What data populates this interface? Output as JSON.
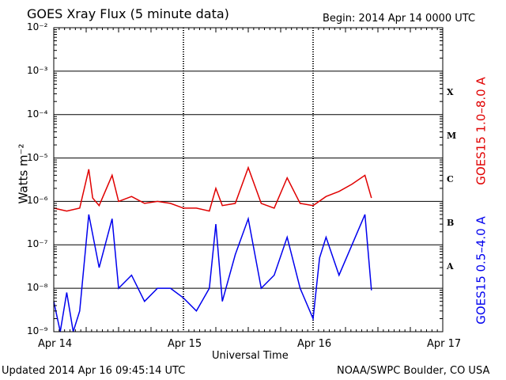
{
  "header": {
    "title": "GOES Xray Flux (5 minute data)",
    "begin": "Begin:  2014 Apr 14 0000 UTC"
  },
  "footer": {
    "updated": "Updated 2014 Apr 16 09:45:14 UTC",
    "credit": "NOAA/SWPC Boulder, CO USA"
  },
  "colors": {
    "long_channel": "#e00000",
    "short_channel": "#0000ee",
    "axes": "#000000"
  },
  "chart_data": {
    "type": "line",
    "title": "GOES Xray Flux (5 minute data)",
    "xlabel": "Universal Time",
    "ylabel": "Watts m⁻²",
    "yscale": "log",
    "ylim": [
      1e-09,
      0.01
    ],
    "grid": true,
    "y_ticks": [
      {
        "value": 1e-09,
        "label": "10⁻⁹"
      },
      {
        "value": 1e-08,
        "label": "10⁻⁸"
      },
      {
        "value": 1e-07,
        "label": "10⁻⁷"
      },
      {
        "value": 1e-06,
        "label": "10⁻⁶"
      },
      {
        "value": 1e-05,
        "label": "10⁻⁵"
      },
      {
        "value": 0.0001,
        "label": "10⁻⁴"
      },
      {
        "value": 0.001,
        "label": "10⁻³"
      },
      {
        "value": 0.01,
        "label": "10⁻²"
      }
    ],
    "x_ticks": [
      "Apr 14",
      "Apr 15",
      "Apr 16",
      "Apr 17"
    ],
    "xlim_days": [
      0,
      3
    ],
    "flare_classes": [
      {
        "label": "A",
        "value": 1e-08
      },
      {
        "label": "B",
        "value": 1e-07
      },
      {
        "label": "C",
        "value": 1e-06
      },
      {
        "label": "M",
        "value": 1e-05
      },
      {
        "label": "X",
        "value": 0.0001
      }
    ],
    "series": [
      {
        "name": "GOES15 1.0–8.0 A",
        "color": "#e00000",
        "x": [
          0,
          0.1,
          0.2,
          0.27,
          0.3,
          0.35,
          0.45,
          0.5,
          0.6,
          0.7,
          0.8,
          0.9,
          1.0,
          1.1,
          1.2,
          1.25,
          1.3,
          1.4,
          1.5,
          1.6,
          1.7,
          1.8,
          1.9,
          2.0,
          2.1,
          2.2,
          2.3,
          2.4,
          2.45
        ],
        "y": [
          7e-07,
          6e-07,
          7e-07,
          5.5e-06,
          1.2e-06,
          8e-07,
          4e-06,
          1e-06,
          1.3e-06,
          9e-07,
          1e-06,
          9e-07,
          7e-07,
          7e-07,
          6e-07,
          2e-06,
          8e-07,
          9e-07,
          6e-06,
          9e-07,
          7e-07,
          3.5e-06,
          9e-07,
          8e-07,
          1.3e-06,
          1.7e-06,
          2.5e-06,
          4e-06,
          1.2e-06
        ]
      },
      {
        "name": "GOES15 0.5–4.0 A",
        "color": "#0000ee",
        "x": [
          0,
          0.05,
          0.1,
          0.15,
          0.2,
          0.27,
          0.35,
          0.45,
          0.5,
          0.6,
          0.7,
          0.8,
          0.9,
          1.0,
          1.1,
          1.2,
          1.25,
          1.3,
          1.4,
          1.5,
          1.6,
          1.7,
          1.8,
          1.9,
          2.0,
          2.05,
          2.1,
          2.2,
          2.3,
          2.4,
          2.45
        ],
        "y": [
          5e-09,
          1e-09,
          8e-09,
          1e-09,
          3e-09,
          5e-07,
          3e-08,
          4e-07,
          1e-08,
          2e-08,
          5e-09,
          1e-08,
          1e-08,
          6e-09,
          3e-09,
          1e-08,
          3e-07,
          5e-09,
          6e-08,
          4e-07,
          1e-08,
          2e-08,
          1.5e-07,
          1e-08,
          2e-09,
          5e-08,
          1.5e-07,
          2e-08,
          1e-07,
          5e-07,
          9e-09
        ]
      }
    ]
  }
}
